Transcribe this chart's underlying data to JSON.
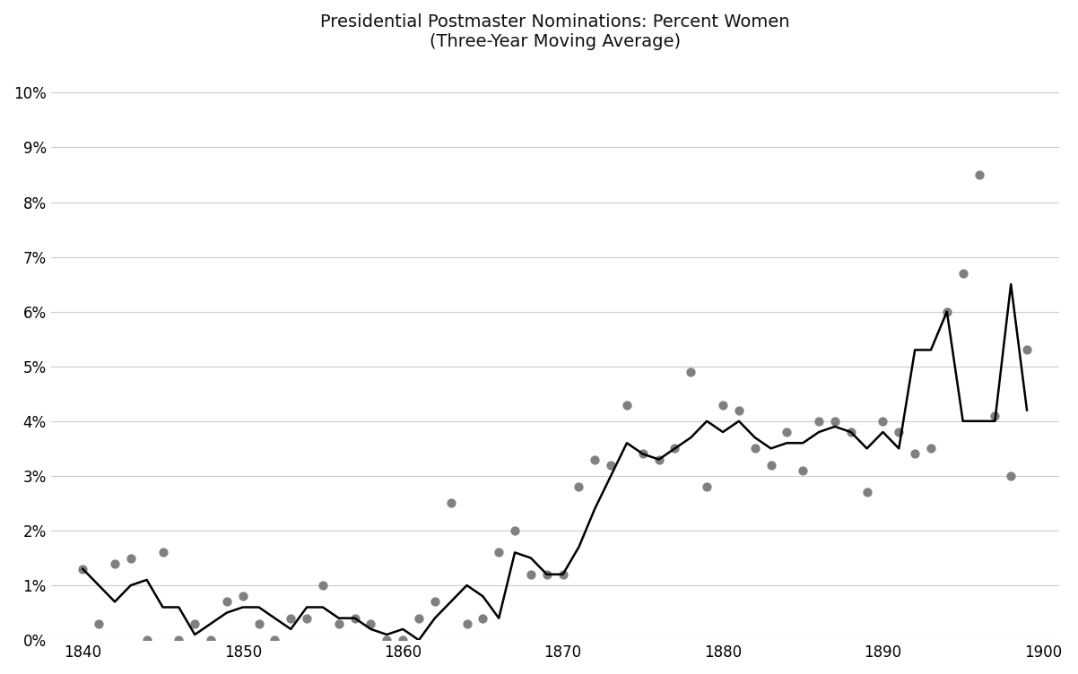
{
  "title": "Presidential Postmaster Nominations: Percent Women\n(Three-Year Moving Average)",
  "xlim": [
    1838,
    1901
  ],
  "ylim": [
    0,
    0.105
  ],
  "yticks": [
    0.0,
    0.01,
    0.02,
    0.03,
    0.04,
    0.05,
    0.06,
    0.07,
    0.08,
    0.09,
    0.1
  ],
  "xticks": [
    1840,
    1850,
    1860,
    1870,
    1880,
    1890,
    1900
  ],
  "scatter_x": [
    1840,
    1841,
    1842,
    1843,
    1844,
    1845,
    1846,
    1847,
    1848,
    1849,
    1850,
    1851,
    1852,
    1853,
    1854,
    1855,
    1856,
    1857,
    1858,
    1859,
    1860,
    1861,
    1862,
    1863,
    1864,
    1865,
    1866,
    1867,
    1868,
    1869,
    1870,
    1871,
    1872,
    1873,
    1874,
    1875,
    1876,
    1877,
    1878,
    1879,
    1880,
    1881,
    1882,
    1883,
    1884,
    1885,
    1886,
    1887,
    1888,
    1889,
    1890,
    1891,
    1892,
    1893,
    1894,
    1895,
    1896,
    1897,
    1898,
    1899
  ],
  "scatter_y": [
    0.013,
    0.003,
    0.014,
    0.015,
    0.0,
    0.016,
    0.0,
    0.003,
    0.0,
    0.007,
    0.008,
    0.003,
    0.0,
    0.004,
    0.004,
    0.01,
    0.003,
    0.004,
    0.003,
    0.0,
    0.0,
    0.004,
    0.007,
    0.025,
    0.003,
    0.004,
    0.016,
    0.02,
    0.012,
    0.012,
    0.012,
    0.028,
    0.033,
    0.032,
    0.043,
    0.034,
    0.033,
    0.035,
    0.049,
    0.028,
    0.043,
    0.042,
    0.035,
    0.032,
    0.038,
    0.031,
    0.04,
    0.04,
    0.038,
    0.027,
    0.04,
    0.038,
    0.034,
    0.035,
    0.06,
    0.067,
    0.085,
    0.041,
    0.03,
    0.053
  ],
  "line_x": [
    1840,
    1841,
    1842,
    1843,
    1844,
    1845,
    1846,
    1847,
    1848,
    1849,
    1850,
    1851,
    1852,
    1853,
    1854,
    1855,
    1856,
    1857,
    1858,
    1859,
    1860,
    1861,
    1862,
    1863,
    1864,
    1865,
    1866,
    1867,
    1868,
    1869,
    1870,
    1871,
    1872,
    1873,
    1874,
    1875,
    1876,
    1877,
    1878,
    1879,
    1880,
    1881,
    1882,
    1883,
    1884,
    1885,
    1886,
    1887,
    1888,
    1889,
    1890,
    1891,
    1892,
    1893,
    1894,
    1895,
    1896,
    1897,
    1898,
    1899
  ],
  "line_y": [
    0.013,
    0.01,
    0.007,
    0.01,
    0.011,
    0.006,
    0.006,
    0.001,
    0.003,
    0.005,
    0.006,
    0.006,
    0.004,
    0.002,
    0.006,
    0.006,
    0.004,
    0.004,
    0.002,
    0.001,
    0.002,
    0.0,
    0.004,
    0.007,
    0.01,
    0.008,
    0.004,
    0.016,
    0.015,
    0.012,
    0.012,
    0.017,
    0.024,
    0.03,
    0.036,
    0.034,
    0.033,
    0.035,
    0.037,
    0.04,
    0.038,
    0.04,
    0.037,
    0.035,
    0.036,
    0.036,
    0.038,
    0.039,
    0.038,
    0.035,
    0.038,
    0.035,
    0.053,
    0.053,
    0.06,
    0.04,
    0.04,
    0.04,
    0.065,
    0.042
  ],
  "scatter_color": "#808080",
  "line_color": "#000000",
  "bg_color": "#ffffff",
  "grid_color": "#cccccc",
  "title_fontsize": 14
}
